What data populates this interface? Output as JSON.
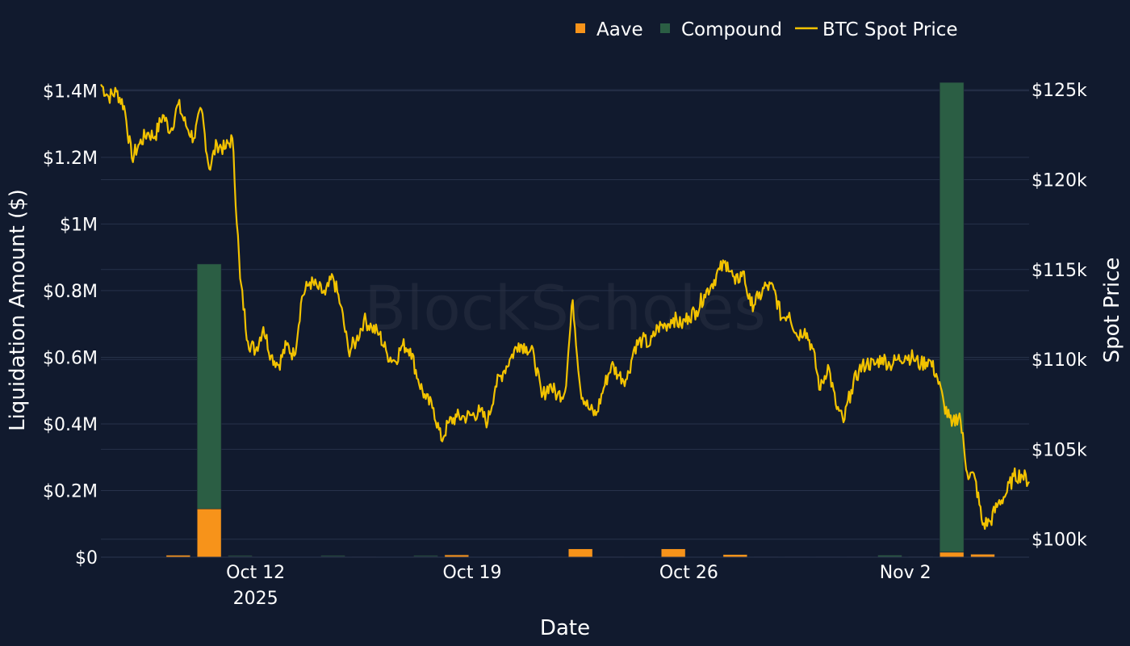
{
  "chart_data": {
    "type": "bar",
    "watermark": "BlockScholes",
    "xlabel": "Date",
    "ylabel": "Liquidation Amount ($)",
    "y2label": "Spot Price",
    "ylim": [
      0,
      1430000
    ],
    "y2lim": [
      99000,
      125500
    ],
    "x_range": [
      "2025-10-07",
      "2025-11-06"
    ],
    "x_ticks": [
      {
        "date": "2025-10-12",
        "label": "Oct 12",
        "sublabel": "2025"
      },
      {
        "date": "2025-10-19",
        "label": "Oct 19",
        "sublabel": ""
      },
      {
        "date": "2025-10-26",
        "label": "Oct 26",
        "sublabel": ""
      },
      {
        "date": "2025-11-02",
        "label": "Nov 2",
        "sublabel": ""
      }
    ],
    "y_ticks": [
      {
        "value": 0,
        "label": "$0"
      },
      {
        "value": 200000,
        "label": "$0.2M"
      },
      {
        "value": 400000,
        "label": "$0.4M"
      },
      {
        "value": 600000,
        "label": "$0.6M"
      },
      {
        "value": 800000,
        "label": "$0.8M"
      },
      {
        "value": 1000000,
        "label": "$1M"
      },
      {
        "value": 1200000,
        "label": "$1.2M"
      },
      {
        "value": 1400000,
        "label": "$1.4M"
      }
    ],
    "y2_ticks": [
      {
        "value": 100000,
        "label": "$100k"
      },
      {
        "value": 105000,
        "label": "$105k"
      },
      {
        "value": 110000,
        "label": "$110k"
      },
      {
        "value": 115000,
        "label": "$115k"
      },
      {
        "value": 120000,
        "label": "$120k"
      },
      {
        "value": 125000,
        "label": "$125k"
      }
    ],
    "legend": {
      "placement": "top-right"
    },
    "colors": {
      "aave": "#f7931a",
      "compound": "#2b5e44",
      "btc": "#f2c200",
      "grid": "#27324a",
      "background": "#111a2e"
    },
    "categories": [
      "2025-10-07",
      "2025-10-08",
      "2025-10-09",
      "2025-10-10",
      "2025-10-11",
      "2025-10-12",
      "2025-10-13",
      "2025-10-14",
      "2025-10-15",
      "2025-10-16",
      "2025-10-17",
      "2025-10-18",
      "2025-10-19",
      "2025-10-20",
      "2025-10-21",
      "2025-10-22",
      "2025-10-23",
      "2025-10-24",
      "2025-10-25",
      "2025-10-26",
      "2025-10-27",
      "2025-10-28",
      "2025-10-29",
      "2025-10-30",
      "2025-10-31",
      "2025-11-01",
      "2025-11-02",
      "2025-11-03",
      "2025-11-04",
      "2025-11-05"
    ],
    "series": [
      {
        "name": "Aave",
        "kind": "bar",
        "values": [
          0,
          500,
          6000,
          145000,
          2000,
          0,
          0,
          2000,
          1000,
          0,
          2000,
          7000,
          0,
          0,
          1000,
          25000,
          1000,
          1000,
          25000,
          0,
          8000,
          1000,
          1000,
          1000,
          1000,
          1000,
          1000,
          15000,
          9000,
          0
        ]
      },
      {
        "name": "Compound",
        "kind": "bar",
        "values": [
          0,
          0,
          0,
          735000,
          3000,
          0,
          0,
          3000,
          0,
          0,
          3000,
          0,
          0,
          0,
          0,
          0,
          0,
          0,
          0,
          0,
          0,
          0,
          0,
          0,
          0,
          5000,
          1000,
          1410000,
          0,
          0
        ]
      },
      {
        "name": "BTC Spot Price",
        "kind": "line",
        "axis": "y2",
        "x": [
          "2025-10-07 00:00",
          "2025-10-07 06:00",
          "2025-10-07 12:00",
          "2025-10-07 18:00",
          "2025-10-08 00:00",
          "2025-10-08 06:00",
          "2025-10-08 12:00",
          "2025-10-08 18:00",
          "2025-10-09 00:00",
          "2025-10-09 06:00",
          "2025-10-09 12:00",
          "2025-10-09 18:00",
          "2025-10-10 00:00",
          "2025-10-10 06:00",
          "2025-10-10 12:00",
          "2025-10-10 18:00",
          "2025-10-11 00:00",
          "2025-10-11 06:00",
          "2025-10-11 12:00",
          "2025-10-11 18:00",
          "2025-10-12 00:00",
          "2025-10-12 06:00",
          "2025-10-12 12:00",
          "2025-10-12 18:00",
          "2025-10-13 00:00",
          "2025-10-13 06:00",
          "2025-10-13 12:00",
          "2025-10-13 18:00",
          "2025-10-14 00:00",
          "2025-10-14 06:00",
          "2025-10-14 12:00",
          "2025-10-14 18:00",
          "2025-10-15 00:00",
          "2025-10-15 06:00",
          "2025-10-15 12:00",
          "2025-10-15 18:00",
          "2025-10-16 00:00",
          "2025-10-16 06:00",
          "2025-10-16 12:00",
          "2025-10-16 18:00",
          "2025-10-17 00:00",
          "2025-10-17 06:00",
          "2025-10-17 12:00",
          "2025-10-17 18:00",
          "2025-10-18 00:00",
          "2025-10-18 06:00",
          "2025-10-18 12:00",
          "2025-10-18 18:00",
          "2025-10-19 00:00",
          "2025-10-19 06:00",
          "2025-10-19 12:00",
          "2025-10-19 18:00",
          "2025-10-20 00:00",
          "2025-10-20 06:00",
          "2025-10-20 12:00",
          "2025-10-20 18:00",
          "2025-10-21 00:00",
          "2025-10-21 06:00",
          "2025-10-21 12:00",
          "2025-10-21 18:00",
          "2025-10-22 00:00",
          "2025-10-22 06:00",
          "2025-10-22 12:00",
          "2025-10-22 18:00",
          "2025-10-23 00:00",
          "2025-10-23 06:00",
          "2025-10-23 12:00",
          "2025-10-23 18:00",
          "2025-10-24 00:00",
          "2025-10-24 06:00",
          "2025-10-24 12:00",
          "2025-10-24 18:00",
          "2025-10-25 00:00",
          "2025-10-25 06:00",
          "2025-10-25 12:00",
          "2025-10-25 18:00",
          "2025-10-26 00:00",
          "2025-10-26 06:00",
          "2025-10-26 12:00",
          "2025-10-26 18:00",
          "2025-10-27 00:00",
          "2025-10-27 06:00",
          "2025-10-27 12:00",
          "2025-10-27 18:00",
          "2025-10-28 00:00",
          "2025-10-28 06:00",
          "2025-10-28 12:00",
          "2025-10-28 18:00",
          "2025-10-29 00:00",
          "2025-10-29 06:00",
          "2025-10-29 12:00",
          "2025-10-29 18:00",
          "2025-10-30 00:00",
          "2025-10-30 06:00",
          "2025-10-30 12:00",
          "2025-10-30 18:00",
          "2025-10-31 00:00",
          "2025-10-31 06:00",
          "2025-10-31 12:00",
          "2025-10-31 18:00",
          "2025-11-01 00:00",
          "2025-11-01 06:00",
          "2025-11-01 12:00",
          "2025-11-01 18:00",
          "2025-11-02 00:00",
          "2025-11-02 06:00",
          "2025-11-02 12:00",
          "2025-11-02 18:00",
          "2025-11-03 00:00",
          "2025-11-03 06:00",
          "2025-11-03 12:00",
          "2025-11-03 18:00",
          "2025-11-04 00:00",
          "2025-11-04 06:00",
          "2025-11-04 12:00",
          "2025-11-04 18:00",
          "2025-11-05 00:00",
          "2025-11-05 06:00",
          "2025-11-05 12:00",
          "2025-11-05 18:00",
          "2025-11-06 00:00"
        ],
        "values": [
          125300,
          124600,
          124900,
          124100,
          121200,
          122000,
          122600,
          122400,
          123600,
          122700,
          124200,
          123000,
          122300,
          123900,
          120600,
          122000,
          121700,
          122300,
          114500,
          111000,
          110500,
          111800,
          110200,
          109700,
          110800,
          110200,
          113500,
          114300,
          114000,
          113600,
          114600,
          113000,
          110500,
          111000,
          112200,
          111800,
          111400,
          110300,
          109900,
          110800,
          110600,
          108900,
          107800,
          107300,
          105500,
          106500,
          106800,
          106800,
          106900,
          107100,
          106500,
          108500,
          109300,
          110100,
          110900,
          110700,
          110200,
          107900,
          108600,
          108000,
          108200,
          113300,
          108300,
          107300,
          106900,
          108400,
          109700,
          109100,
          108900,
          110700,
          111100,
          110800,
          111800,
          111900,
          112300,
          111900,
          112400,
          112700,
          113600,
          114200,
          115000,
          115400,
          114200,
          114900,
          113000,
          113400,
          114100,
          113900,
          112300,
          112600,
          111300,
          111700,
          110600,
          108300,
          109700,
          107500,
          106500,
          108300,
          109400,
          109800,
          109700,
          110100,
          109700,
          110000,
          110200,
          110100,
          109700,
          110000,
          109200,
          107500,
          106300,
          107000,
          103700,
          103400,
          100800,
          101000,
          102000,
          102500,
          103500,
          103600,
          103200
        ]
      }
    ]
  }
}
